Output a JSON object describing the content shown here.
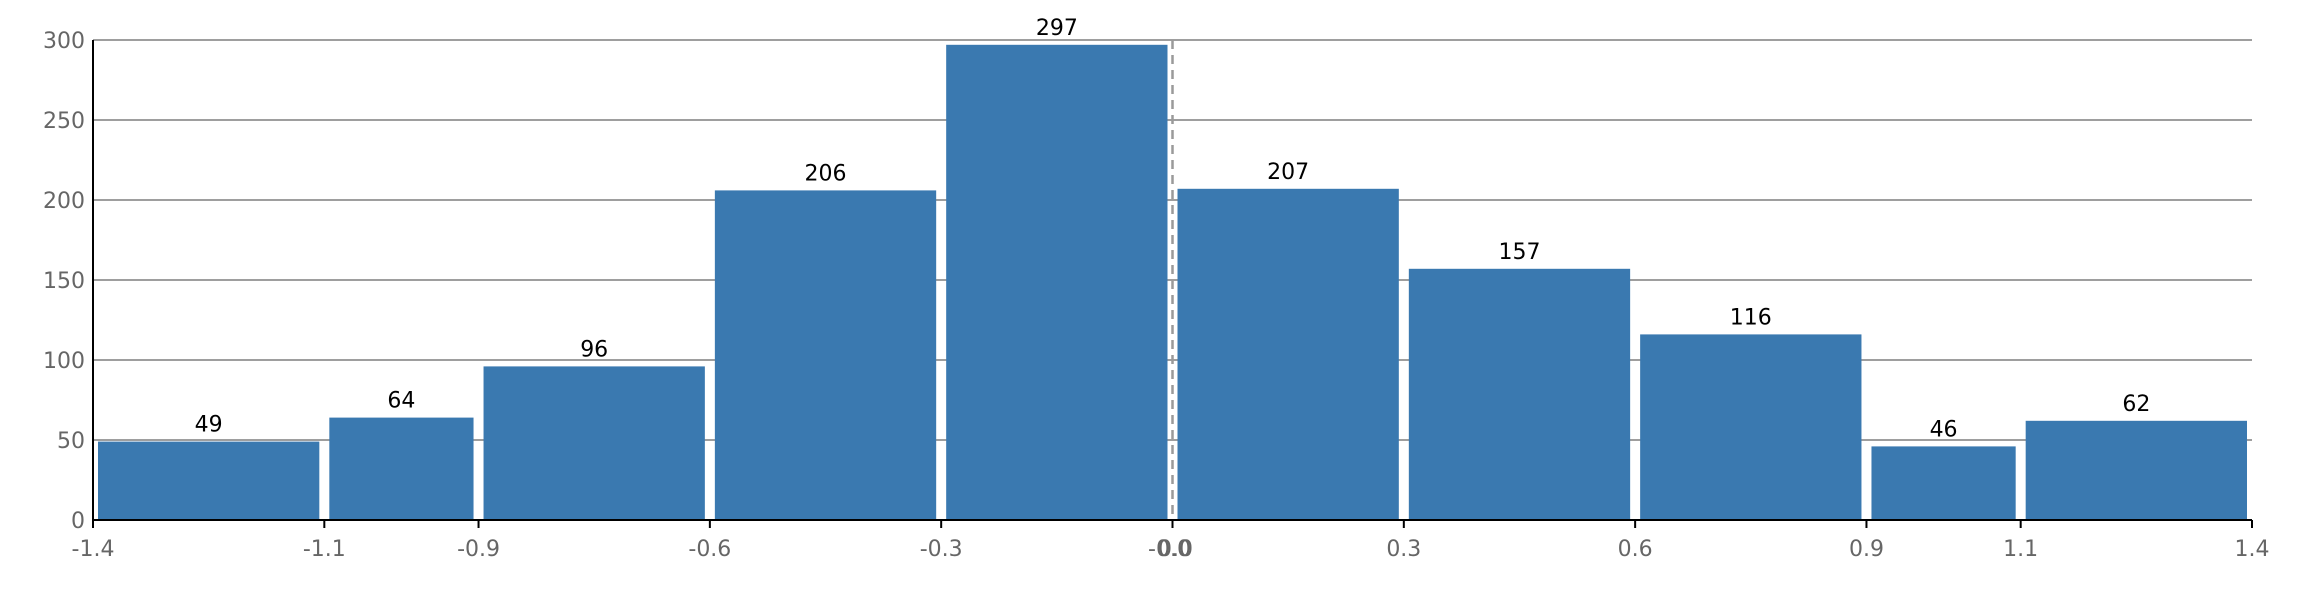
{
  "chart_data": {
    "type": "bar",
    "title": "",
    "xlabel": "",
    "ylabel": "",
    "bins": [
      {
        "start": -1.4,
        "end": -1.1,
        "value": 49
      },
      {
        "start": -1.1,
        "end": -0.9,
        "value": 64
      },
      {
        "start": -0.9,
        "end": -0.6,
        "value": 96
      },
      {
        "start": -0.6,
        "end": -0.3,
        "value": 206
      },
      {
        "start": -0.3,
        "end": 0.0,
        "value": 297
      },
      {
        "start": 0.0,
        "end": 0.3,
        "value": 207
      },
      {
        "start": 0.3,
        "end": 0.6,
        "value": 157
      },
      {
        "start": 0.6,
        "end": 0.9,
        "value": 116
      },
      {
        "start": 0.9,
        "end": 1.1,
        "value": 46
      },
      {
        "start": 1.1,
        "end": 1.4,
        "value": 62
      }
    ],
    "values": [
      49,
      64,
      96,
      206,
      297,
      207,
      157,
      116,
      46,
      62
    ],
    "x_tick_labels": [
      "-1.4",
      "-1.1",
      "-0.9",
      "-0.6",
      "-0.3",
      "-0.0",
      "0.0",
      "0.3",
      "0.6",
      "0.9",
      "1.1",
      "1.4"
    ],
    "y_ticks": [
      0,
      50,
      100,
      150,
      200,
      250,
      300
    ],
    "y_tick_labels": [
      "0",
      "50",
      "100",
      "150",
      "200",
      "250",
      "300"
    ],
    "ylim": [
      0,
      300
    ],
    "xlim": [
      -1.4,
      1.4
    ],
    "reference_line_x": 0.0,
    "grid": "horizontal",
    "legend": "none",
    "bar_color": "#3a79b0",
    "grid_color": "#7f7f7f",
    "reference_line_color": "#9a9a9a"
  }
}
